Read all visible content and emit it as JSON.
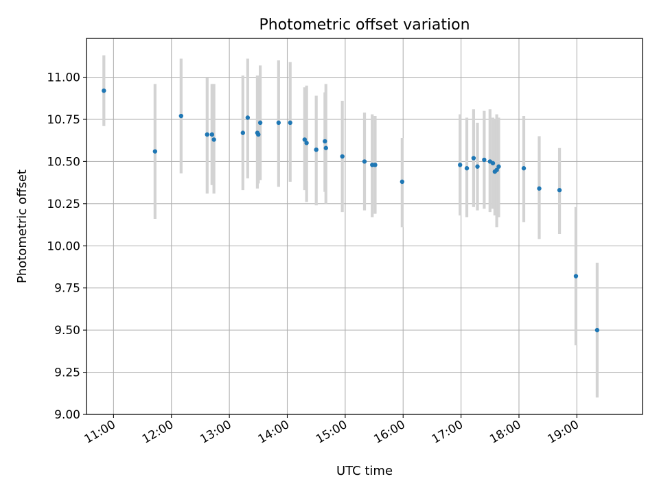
{
  "chart_data": {
    "type": "scatter",
    "title": "Photometric offset variation",
    "xlabel": "UTC time",
    "ylabel": "Photometric offset",
    "xlim": [
      "10:32",
      "20:08"
    ],
    "ylim": [
      9.0,
      11.23
    ],
    "xticks": [
      "11:00",
      "12:00",
      "13:00",
      "14:00",
      "15:00",
      "16:00",
      "17:00",
      "18:00",
      "19:00"
    ],
    "yticks": [
      "9.00",
      "9.25",
      "9.50",
      "9.75",
      "10.00",
      "10.25",
      "10.50",
      "10.75",
      "11.00"
    ],
    "grid": true,
    "point_color": "#1f77b4",
    "error_color": "#d3d3d3",
    "points": [
      {
        "t": "10:50",
        "y": 10.92,
        "lo": 10.71,
        "hi": 11.13
      },
      {
        "t": "11:43",
        "y": 10.56,
        "lo": 10.16,
        "hi": 10.96
      },
      {
        "t": "12:10",
        "y": 10.77,
        "lo": 10.43,
        "hi": 11.11
      },
      {
        "t": "12:37",
        "y": 10.66,
        "lo": 10.31,
        "hi": 11.0
      },
      {
        "t": "12:42",
        "y": 10.66,
        "lo": 10.36,
        "hi": 10.96
      },
      {
        "t": "12:44",
        "y": 10.63,
        "lo": 10.31,
        "hi": 10.96
      },
      {
        "t": "13:14",
        "y": 10.67,
        "lo": 10.33,
        "hi": 11.01
      },
      {
        "t": "13:19",
        "y": 10.76,
        "lo": 10.4,
        "hi": 11.11
      },
      {
        "t": "13:29",
        "y": 10.67,
        "lo": 10.34,
        "hi": 11.01
      },
      {
        "t": "13:30",
        "y": 10.66,
        "lo": 10.37,
        "hi": 10.94
      },
      {
        "t": "13:32",
        "y": 10.73,
        "lo": 10.39,
        "hi": 11.07
      },
      {
        "t": "13:51",
        "y": 10.73,
        "lo": 10.35,
        "hi": 11.1
      },
      {
        "t": "14:03",
        "y": 10.73,
        "lo": 10.38,
        "hi": 11.09
      },
      {
        "t": "14:18",
        "y": 10.63,
        "lo": 10.33,
        "hi": 10.94
      },
      {
        "t": "14:20",
        "y": 10.61,
        "lo": 10.26,
        "hi": 10.95
      },
      {
        "t": "14:30",
        "y": 10.57,
        "lo": 10.24,
        "hi": 10.89
      },
      {
        "t": "14:39",
        "y": 10.62,
        "lo": 10.32,
        "hi": 10.91
      },
      {
        "t": "14:40",
        "y": 10.58,
        "lo": 10.25,
        "hi": 10.96
      },
      {
        "t": "14:57",
        "y": 10.53,
        "lo": 10.2,
        "hi": 10.86
      },
      {
        "t": "15:20",
        "y": 10.5,
        "lo": 10.21,
        "hi": 10.79
      },
      {
        "t": "15:28",
        "y": 10.48,
        "lo": 10.17,
        "hi": 10.78
      },
      {
        "t": "15:31",
        "y": 10.48,
        "lo": 10.19,
        "hi": 10.77
      },
      {
        "t": "15:59",
        "y": 10.38,
        "lo": 10.11,
        "hi": 10.64
      },
      {
        "t": "16:59",
        "y": 10.48,
        "lo": 10.18,
        "hi": 10.78
      },
      {
        "t": "17:06",
        "y": 10.46,
        "lo": 10.17,
        "hi": 10.76
      },
      {
        "t": "17:13",
        "y": 10.52,
        "lo": 10.23,
        "hi": 10.81
      },
      {
        "t": "17:17",
        "y": 10.47,
        "lo": 10.21,
        "hi": 10.73
      },
      {
        "t": "17:24",
        "y": 10.51,
        "lo": 10.22,
        "hi": 10.8
      },
      {
        "t": "17:30",
        "y": 10.5,
        "lo": 10.2,
        "hi": 10.81
      },
      {
        "t": "17:33",
        "y": 10.49,
        "lo": 10.22,
        "hi": 10.76
      },
      {
        "t": "17:35",
        "y": 10.44,
        "lo": 10.18,
        "hi": 10.75
      },
      {
        "t": "17:37",
        "y": 10.45,
        "lo": 10.11,
        "hi": 10.78
      },
      {
        "t": "17:39",
        "y": 10.47,
        "lo": 10.17,
        "hi": 10.76
      },
      {
        "t": "18:05",
        "y": 10.46,
        "lo": 10.14,
        "hi": 10.77
      },
      {
        "t": "18:21",
        "y": 10.34,
        "lo": 10.04,
        "hi": 10.65
      },
      {
        "t": "18:42",
        "y": 10.33,
        "lo": 10.07,
        "hi": 10.58
      },
      {
        "t": "18:59",
        "y": 9.82,
        "lo": 9.41,
        "hi": 10.23
      },
      {
        "t": "19:21",
        "y": 9.5,
        "lo": 9.1,
        "hi": 9.9
      }
    ]
  }
}
